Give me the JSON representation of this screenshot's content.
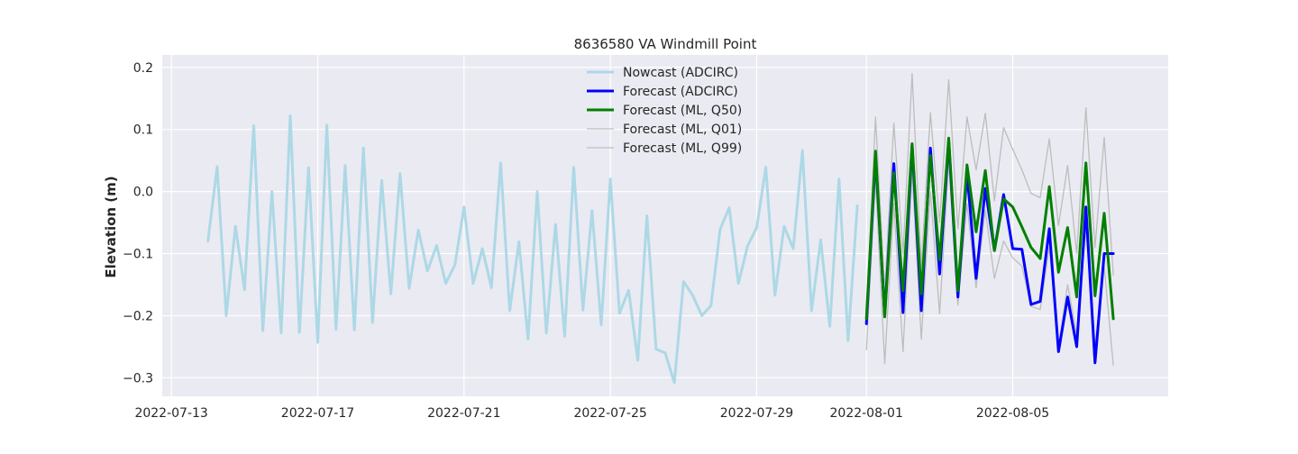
{
  "chart_data": {
    "type": "line",
    "title": "8636580 VA Windmill Point",
    "xlabel": "",
    "ylabel": "Elevation (m)",
    "xlim": [
      "2022-07-12T18:00",
      "2022-08-09T06:00"
    ],
    "ylim": [
      -0.33,
      0.22
    ],
    "x_ticks": [
      "2022-07-13",
      "2022-07-17",
      "2022-07-21",
      "2022-07-25",
      "2022-07-29",
      "2022-08-01",
      "2022-08-05"
    ],
    "y_ticks": [
      0.2,
      0.1,
      0.0,
      -0.1,
      -0.2,
      -0.3
    ],
    "y_tick_labels": [
      "0.2",
      "0.1",
      "0.0",
      "−0.1",
      "−0.2",
      "−0.3"
    ],
    "grid": true,
    "legend_position": "top-center",
    "series": [
      {
        "name": "Nowcast (ADCIRC)",
        "color": "#add8e6",
        "width": 3,
        "x": [
          "2022-07-14T00:00",
          "2022-07-14T06:00",
          "2022-07-14T12:00",
          "2022-07-14T18:00",
          "2022-07-15T00:00",
          "2022-07-15T06:00",
          "2022-07-15T12:00",
          "2022-07-15T18:00",
          "2022-07-16T00:00",
          "2022-07-16T06:00",
          "2022-07-16T12:00",
          "2022-07-16T18:00",
          "2022-07-17T00:00",
          "2022-07-17T06:00",
          "2022-07-17T12:00",
          "2022-07-17T18:00",
          "2022-07-18T00:00",
          "2022-07-18T06:00",
          "2022-07-18T12:00",
          "2022-07-18T18:00",
          "2022-07-19T00:00",
          "2022-07-19T06:00",
          "2022-07-19T12:00",
          "2022-07-19T18:00",
          "2022-07-20T00:00",
          "2022-07-20T06:00",
          "2022-07-20T12:00",
          "2022-07-20T18:00",
          "2022-07-21T00:00",
          "2022-07-21T06:00",
          "2022-07-21T12:00",
          "2022-07-21T18:00",
          "2022-07-22T00:00",
          "2022-07-22T06:00",
          "2022-07-22T12:00",
          "2022-07-22T18:00",
          "2022-07-23T00:00",
          "2022-07-23T06:00",
          "2022-07-23T12:00",
          "2022-07-23T18:00",
          "2022-07-24T00:00",
          "2022-07-24T06:00",
          "2022-07-24T12:00",
          "2022-07-24T18:00",
          "2022-07-25T00:00",
          "2022-07-25T06:00",
          "2022-07-25T12:00",
          "2022-07-25T18:00",
          "2022-07-26T00:00",
          "2022-07-26T06:00",
          "2022-07-26T12:00",
          "2022-07-26T18:00",
          "2022-07-27T00:00",
          "2022-07-27T06:00",
          "2022-07-27T12:00",
          "2022-07-27T18:00",
          "2022-07-28T00:00",
          "2022-07-28T06:00",
          "2022-07-28T12:00",
          "2022-07-28T18:00",
          "2022-07-29T00:00",
          "2022-07-29T06:00",
          "2022-07-29T12:00",
          "2022-07-29T18:00",
          "2022-07-30T00:00",
          "2022-07-30T06:00",
          "2022-07-30T12:00",
          "2022-07-30T18:00",
          "2022-07-31T00:00",
          "2022-07-31T06:00",
          "2022-07-31T12:00",
          "2022-07-31T18:00"
        ],
        "y": [
          -0.08,
          0.04,
          -0.2,
          -0.056,
          -0.158,
          0.106,
          -0.224,
          0.0,
          -0.228,
          0.122,
          -0.227,
          0.038,
          -0.243,
          0.107,
          -0.222,
          0.042,
          -0.223,
          0.07,
          -0.211,
          0.018,
          -0.165,
          0.029,
          -0.156,
          -0.062,
          -0.128,
          -0.087,
          -0.148,
          -0.118,
          -0.025,
          -0.148,
          -0.092,
          -0.155,
          0.046,
          -0.192,
          -0.081,
          -0.238,
          0.0,
          -0.228,
          -0.053,
          -0.233,
          0.039,
          -0.191,
          -0.031,
          -0.215,
          0.02,
          -0.196,
          -0.159,
          -0.272,
          -0.039,
          -0.254,
          -0.26,
          -0.308,
          -0.145,
          -0.167,
          -0.2,
          -0.184,
          -0.061,
          -0.026,
          -0.148,
          -0.088,
          -0.058,
          0.039,
          -0.167,
          -0.056,
          -0.092,
          0.066,
          -0.192,
          -0.078,
          -0.217,
          0.02,
          -0.24,
          -0.023
        ]
      },
      {
        "name": "Forecast (ADCIRC)",
        "color": "#0000ff",
        "width": 3,
        "x": [
          "2022-08-01T00:00",
          "2022-08-01T06:00",
          "2022-08-01T12:00",
          "2022-08-01T18:00",
          "2022-08-02T00:00",
          "2022-08-02T06:00",
          "2022-08-02T12:00",
          "2022-08-02T18:00",
          "2022-08-03T00:00",
          "2022-08-03T06:00",
          "2022-08-03T12:00",
          "2022-08-03T18:00",
          "2022-08-04T00:00",
          "2022-08-04T06:00",
          "2022-08-04T12:00",
          "2022-08-04T18:00",
          "2022-08-05T00:00",
          "2022-08-05T06:00",
          "2022-08-05T12:00",
          "2022-08-05T18:00",
          "2022-08-06T00:00",
          "2022-08-06T06:00",
          "2022-08-06T12:00",
          "2022-08-06T18:00",
          "2022-08-07T00:00",
          "2022-08-07T06:00",
          "2022-08-07T12:00",
          "2022-08-07T18:00"
        ],
        "y": [
          -0.213,
          0.058,
          -0.2,
          0.045,
          -0.195,
          0.075,
          -0.192,
          0.07,
          -0.133,
          0.082,
          -0.17,
          0.03,
          -0.14,
          0.005,
          -0.095,
          -0.005,
          -0.092,
          -0.093,
          -0.182,
          -0.177,
          -0.06,
          -0.258,
          -0.17,
          -0.25,
          -0.025,
          -0.276,
          -0.1,
          -0.1
        ]
      },
      {
        "name": "Forecast (ML, Q50)",
        "color": "#008000",
        "width": 3,
        "x": [
          "2022-08-01T00:00",
          "2022-08-01T06:00",
          "2022-08-01T12:00",
          "2022-08-01T18:00",
          "2022-08-02T00:00",
          "2022-08-02T06:00",
          "2022-08-02T12:00",
          "2022-08-02T18:00",
          "2022-08-03T00:00",
          "2022-08-03T06:00",
          "2022-08-03T12:00",
          "2022-08-03T18:00",
          "2022-08-04T00:00",
          "2022-08-04T06:00",
          "2022-08-04T12:00",
          "2022-08-04T18:00",
          "2022-08-05T00:00",
          "2022-08-05T06:00",
          "2022-08-05T12:00",
          "2022-08-05T18:00",
          "2022-08-06T00:00",
          "2022-08-06T06:00",
          "2022-08-06T12:00",
          "2022-08-06T18:00",
          "2022-08-07T00:00",
          "2022-08-07T06:00",
          "2022-08-07T12:00",
          "2022-08-07T18:00"
        ],
        "y": [
          -0.205,
          0.065,
          -0.202,
          0.03,
          -0.16,
          0.077,
          -0.165,
          0.058,
          -0.11,
          0.086,
          -0.16,
          0.043,
          -0.065,
          0.034,
          -0.095,
          -0.012,
          -0.025,
          -0.057,
          -0.09,
          -0.108,
          0.008,
          -0.13,
          -0.058,
          -0.17,
          0.046,
          -0.168,
          -0.035,
          -0.205
        ]
      },
      {
        "name": "Forecast (ML, Q01)",
        "color": "#bdbdbd",
        "width": 1.3,
        "x": [
          "2022-08-01T00:00",
          "2022-08-01T06:00",
          "2022-08-01T12:00",
          "2022-08-01T18:00",
          "2022-08-02T00:00",
          "2022-08-02T06:00",
          "2022-08-02T12:00",
          "2022-08-02T18:00",
          "2022-08-03T00:00",
          "2022-08-03T06:00",
          "2022-08-03T12:00",
          "2022-08-03T18:00",
          "2022-08-04T00:00",
          "2022-08-04T06:00",
          "2022-08-04T12:00",
          "2022-08-04T18:00",
          "2022-08-05T00:00",
          "2022-08-05T06:00",
          "2022-08-05T12:00",
          "2022-08-05T18:00",
          "2022-08-06T00:00",
          "2022-08-06T06:00",
          "2022-08-06T12:00",
          "2022-08-06T18:00",
          "2022-08-07T00:00",
          "2022-08-07T06:00",
          "2022-08-07T12:00",
          "2022-08-07T18:00"
        ],
        "y": [
          -0.255,
          0.02,
          -0.277,
          -0.02,
          -0.258,
          0.03,
          -0.238,
          0.0,
          -0.197,
          0.05,
          -0.183,
          -0.02,
          -0.155,
          -0.03,
          -0.14,
          -0.08,
          -0.107,
          -0.12,
          -0.185,
          -0.19,
          -0.09,
          -0.25,
          -0.15,
          -0.23,
          -0.06,
          -0.25,
          -0.12,
          -0.28
        ]
      },
      {
        "name": "Forecast (ML, Q99)",
        "color": "#bdbdbd",
        "width": 1.3,
        "x": [
          "2022-08-01T00:00",
          "2022-08-01T06:00",
          "2022-08-01T12:00",
          "2022-08-01T18:00",
          "2022-08-02T00:00",
          "2022-08-02T06:00",
          "2022-08-02T12:00",
          "2022-08-02T18:00",
          "2022-08-03T00:00",
          "2022-08-03T06:00",
          "2022-08-03T12:00",
          "2022-08-03T18:00",
          "2022-08-04T00:00",
          "2022-08-04T06:00",
          "2022-08-04T12:00",
          "2022-08-04T18:00",
          "2022-08-05T00:00",
          "2022-08-05T06:00",
          "2022-08-05T12:00",
          "2022-08-05T18:00",
          "2022-08-06T00:00",
          "2022-08-06T06:00",
          "2022-08-06T12:00",
          "2022-08-06T18:00",
          "2022-08-07T00:00",
          "2022-08-07T06:00",
          "2022-08-07T12:00",
          "2022-08-07T18:00"
        ],
        "y": [
          -0.2,
          0.12,
          -0.16,
          0.11,
          -0.1,
          0.19,
          -0.12,
          0.127,
          -0.05,
          0.18,
          -0.06,
          0.12,
          0.035,
          0.126,
          -0.015,
          0.103,
          0.068,
          0.035,
          -0.003,
          -0.01,
          0.085,
          -0.055,
          0.042,
          -0.1,
          0.135,
          -0.09,
          0.087,
          -0.135
        ]
      }
    ]
  }
}
